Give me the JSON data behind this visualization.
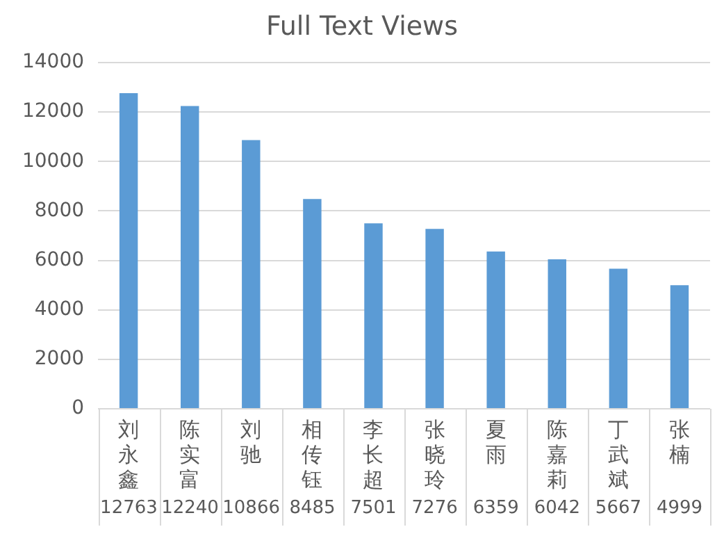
{
  "chart_data": {
    "type": "bar",
    "title": "Full Text Views",
    "categories": [
      "刘永鑫",
      "陈实富",
      "刘驰",
      "相传钰",
      "李长超",
      "张晓玲",
      "夏雨",
      "陈嘉莉",
      "丁武斌",
      "张楠"
    ],
    "values": [
      12763,
      12240,
      10866,
      8485,
      7501,
      7276,
      6359,
      6042,
      5667,
      4999
    ],
    "color": "#5b9bd5",
    "ylim": [
      0,
      14000
    ],
    "yticks": [
      0,
      2000,
      4000,
      6000,
      8000,
      10000,
      12000,
      14000
    ],
    "grid": true,
    "legend": false,
    "data_labels": true
  }
}
